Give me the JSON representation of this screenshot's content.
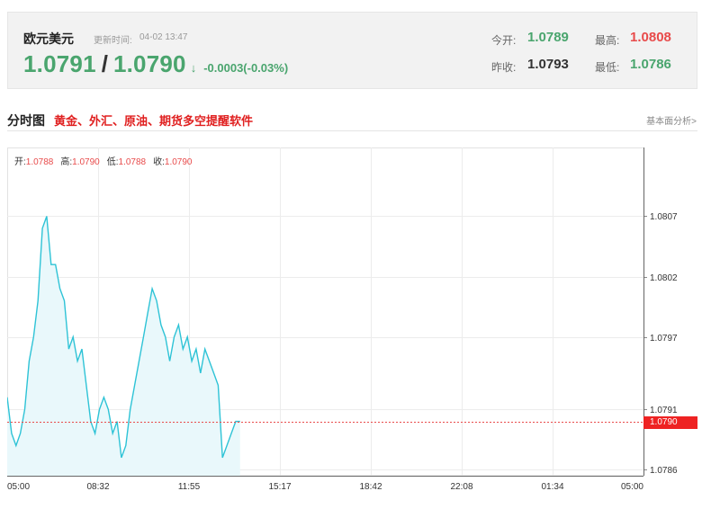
{
  "header": {
    "pair_name": "欧元美元",
    "update_label": "更新时间:",
    "update_time": "04-02 13:47",
    "bid": "1.0791",
    "ask": "1.0790",
    "arrow": "↓",
    "change": "-0.0003(-0.03%)",
    "open_label": "今开:",
    "open": "1.0789",
    "high_label": "最高:",
    "high": "1.0808",
    "prev_close_label": "昨收:",
    "prev_close": "1.0793",
    "low_label": "最低:",
    "low": "1.0786"
  },
  "section": {
    "title": "分时图",
    "promo": "黄金、外汇、原油、期货多空提醒软件",
    "fundamental_link": "基本面分析>"
  },
  "ohlc": {
    "open_label": "开:",
    "open": "1.0788",
    "high_label": "高:",
    "high": "1.0790",
    "low_label": "低:",
    "low": "1.0788",
    "close_label": "收:",
    "close": "1.0790"
  },
  "colors": {
    "up": "#e84b4b",
    "down": "#4aa56e",
    "line": "#2ec3d6",
    "area": "#e9f8fb",
    "current_tag": "#e22222"
  },
  "chart_data": {
    "type": "line",
    "x_ticks": [
      "05:00",
      "08:32",
      "11:55",
      "15:17",
      "18:42",
      "22:08",
      "01:34",
      "05:00"
    ],
    "y_ticks": [
      "1.0807",
      "1.0802",
      "1.0797",
      "1.0791",
      "1.0786"
    ],
    "current_price": "1.0790",
    "ylim": [
      1.07855,
      1.08127
    ],
    "series": [
      {
        "values": [
          1.0792,
          1.0789,
          1.0788,
          1.0789,
          1.0791,
          1.0795,
          1.0797,
          1.08,
          1.0806,
          1.0807,
          1.0803,
          1.0803,
          1.0801,
          1.08,
          1.0796,
          1.0797,
          1.0795,
          1.0796,
          1.0793,
          1.079,
          1.0789,
          1.0791,
          1.0792,
          1.0791,
          1.0789,
          1.079,
          1.0787,
          1.0788,
          1.0791,
          1.0793,
          1.0795,
          1.0797,
          1.0799,
          1.0801,
          1.08,
          1.0798,
          1.0797,
          1.0795,
          1.0797,
          1.0798,
          1.0796,
          1.0797,
          1.0795,
          1.0796,
          1.0794,
          1.0796,
          1.0795,
          1.0794,
          1.0793,
          1.0787,
          1.0788,
          1.0789,
          1.079,
          1.079
        ]
      }
    ]
  }
}
